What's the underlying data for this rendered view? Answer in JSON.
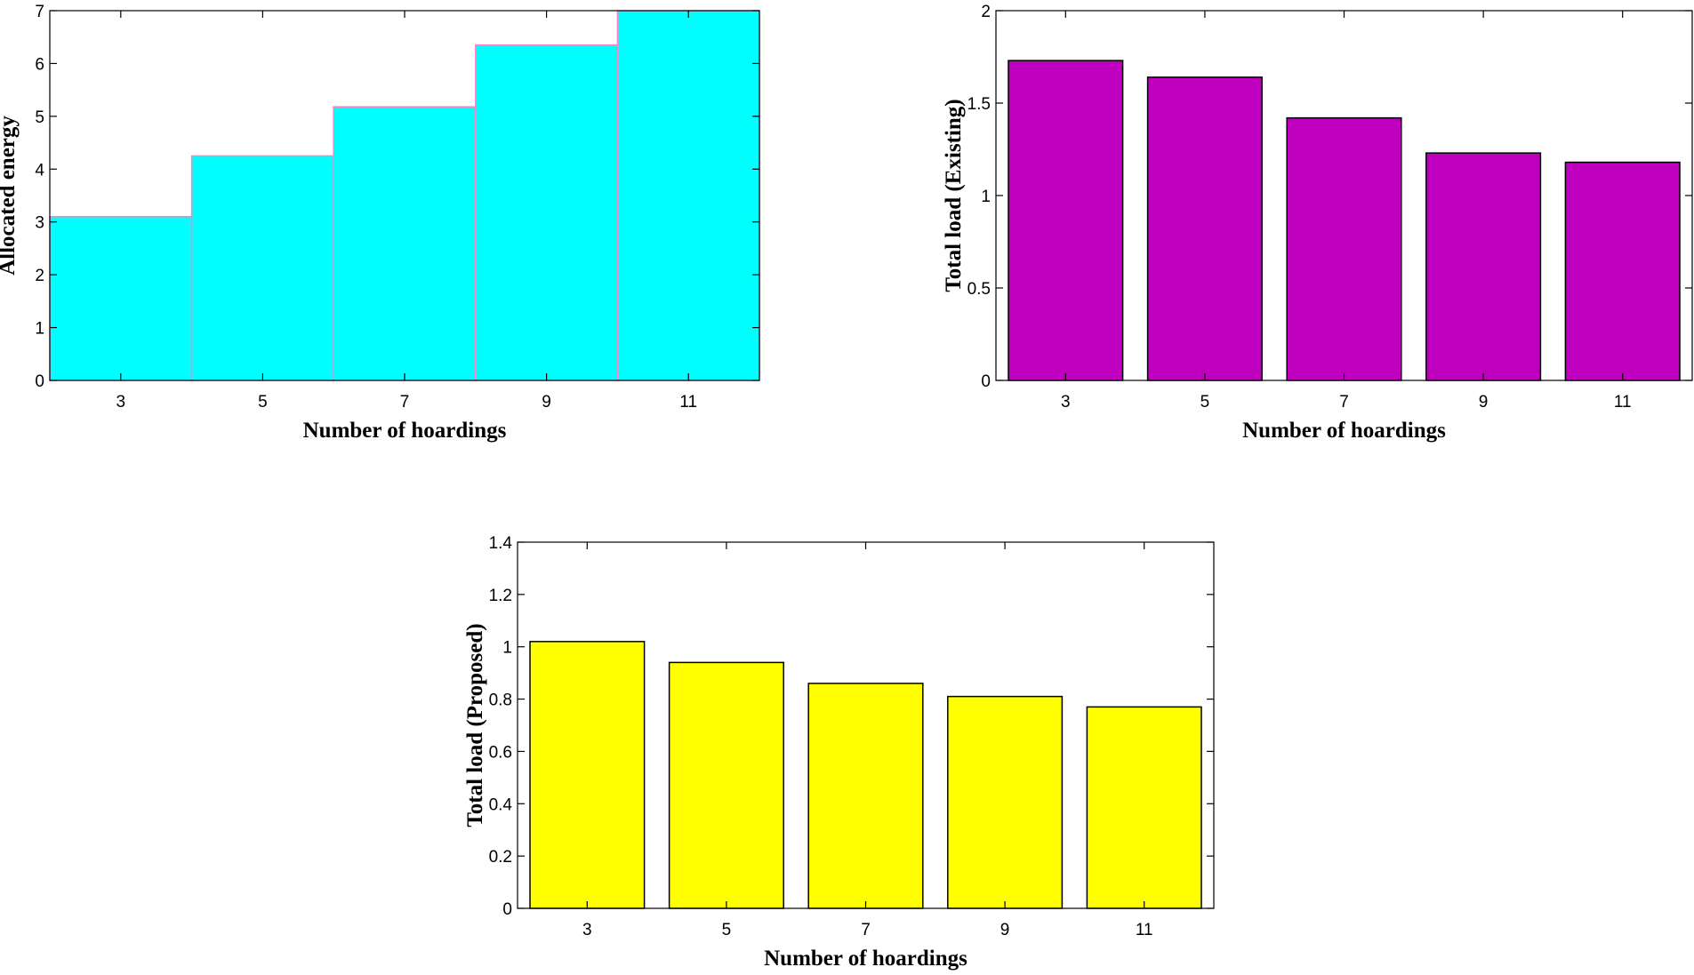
{
  "chart_data": [
    {
      "type": "bar",
      "style": "histogram",
      "categories": [
        "3",
        "5",
        "7",
        "9",
        "11"
      ],
      "values": [
        3.1,
        4.25,
        5.18,
        6.35,
        7.0
      ],
      "ylim": [
        0,
        7
      ],
      "yticks": [
        "0",
        "1",
        "2",
        "3",
        "4",
        "5",
        "6",
        "7"
      ],
      "xlabel": "Number of hoardings",
      "ylabel": "Allocated energy",
      "bar_color": "#00FFFF",
      "edge_color": "#FF80C0"
    },
    {
      "type": "bar",
      "categories": [
        "3",
        "5",
        "7",
        "9",
        "11"
      ],
      "values": [
        1.73,
        1.64,
        1.42,
        1.23,
        1.18
      ],
      "ylim": [
        0,
        2
      ],
      "yticks": [
        "0",
        "0.5",
        "1",
        "1.5",
        "2"
      ],
      "xlabel": "Number of hoardings",
      "ylabel": "Total load (Existing)",
      "bar_color": "#BF00BF",
      "edge_color": "#000000"
    },
    {
      "type": "bar",
      "categories": [
        "3",
        "5",
        "7",
        "9",
        "11"
      ],
      "values": [
        1.02,
        0.94,
        0.86,
        0.81,
        0.77
      ],
      "ylim": [
        0,
        1.4
      ],
      "yticks": [
        "0",
        "0.2",
        "0.4",
        "0.6",
        "0.8",
        "1",
        "1.2",
        "1.4"
      ],
      "xlabel": "Number of hoardings",
      "ylabel": "Total load (Proposed)",
      "bar_color": "#FFFF00",
      "edge_color": "#000000"
    }
  ]
}
